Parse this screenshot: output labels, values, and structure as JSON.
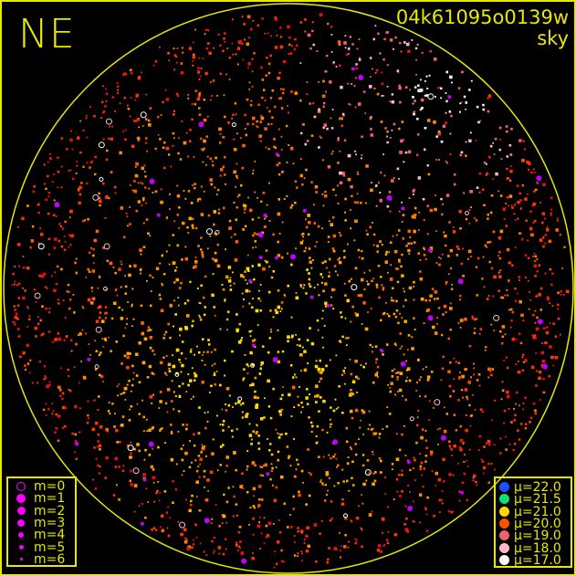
{
  "title": "NE",
  "frame_id": "04k61095o0139w",
  "frame_type": "sky",
  "border_color": "#e8e800",
  "magnitude_legend": {
    "symbol_color": "#ff00ff",
    "items": [
      {
        "label": "m=0",
        "style": "ring"
      },
      {
        "label": "m=1",
        "style": "dot"
      },
      {
        "label": "m=2",
        "style": "dot"
      },
      {
        "label": "m=3",
        "style": "dot"
      },
      {
        "label": "m=4",
        "style": "dot"
      },
      {
        "label": "m=5",
        "style": "dot"
      },
      {
        "label": "m=6",
        "style": "dot"
      }
    ]
  },
  "brightness_legend": {
    "items": [
      {
        "label": "μ=22.0",
        "color": "#1a50ff"
      },
      {
        "label": "μ=21.5",
        "color": "#10e070"
      },
      {
        "label": "μ=21.0",
        "color": "#ffd800"
      },
      {
        "label": "μ=20.0",
        "color": "#ff5000"
      },
      {
        "label": "μ=19.0",
        "color": "#f06070"
      },
      {
        "label": "μ=18.0",
        "color": "#ffb8c8"
      },
      {
        "label": "μ=17.0",
        "color": "#ffffff"
      }
    ]
  }
}
